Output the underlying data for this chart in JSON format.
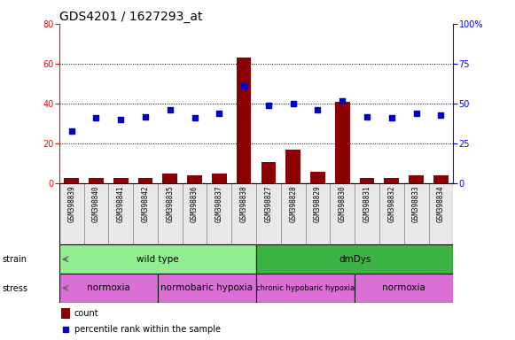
{
  "title": "GDS4201 / 1627293_at",
  "samples": [
    "GSM398839",
    "GSM398840",
    "GSM398841",
    "GSM398842",
    "GSM398835",
    "GSM398836",
    "GSM398837",
    "GSM398838",
    "GSM398827",
    "GSM398828",
    "GSM398829",
    "GSM398830",
    "GSM398831",
    "GSM398832",
    "GSM398833",
    "GSM398834"
  ],
  "count_values": [
    3,
    3,
    3,
    3,
    5,
    4,
    5,
    63,
    11,
    17,
    6,
    41,
    3,
    3,
    4,
    4
  ],
  "percentile_values": [
    33,
    41,
    40,
    42,
    46,
    41,
    44,
    61,
    49,
    50,
    46,
    52,
    42,
    41,
    44,
    43
  ],
  "bar_color": "#8B0000",
  "dot_color": "#0000CD",
  "left_ylim": [
    0,
    80
  ],
  "right_ylim": [
    0,
    100
  ],
  "left_yticks": [
    0,
    20,
    40,
    60,
    80
  ],
  "right_yticks": [
    0,
    25,
    50,
    75,
    100
  ],
  "right_yticklabels": [
    "0",
    "25",
    "50",
    "75",
    "100%"
  ],
  "strain_groups": [
    {
      "label": "wild type",
      "start": 0,
      "end": 8,
      "color": "#90EE90"
    },
    {
      "label": "dmDys",
      "start": 8,
      "end": 16,
      "color": "#3CB343"
    }
  ],
  "stress_groups": [
    {
      "label": "normoxia",
      "start": 0,
      "end": 4,
      "color": "#DA70D6"
    },
    {
      "label": "normobaric hypoxia",
      "start": 4,
      "end": 8,
      "color": "#DA70D6"
    },
    {
      "label": "chronic hypobaric hypoxia",
      "start": 8,
      "end": 12,
      "color": "#DA70D6"
    },
    {
      "label": "normoxia",
      "start": 12,
      "end": 16,
      "color": "#DA70D6"
    }
  ],
  "stress_dividers": [
    4,
    8,
    12
  ],
  "bg_color": "#FFFFFF",
  "title_fontsize": 10,
  "tick_fontsize": 7,
  "sample_fontsize": 5.5,
  "band_fontsize": 7.5,
  "legend_fontsize": 7
}
